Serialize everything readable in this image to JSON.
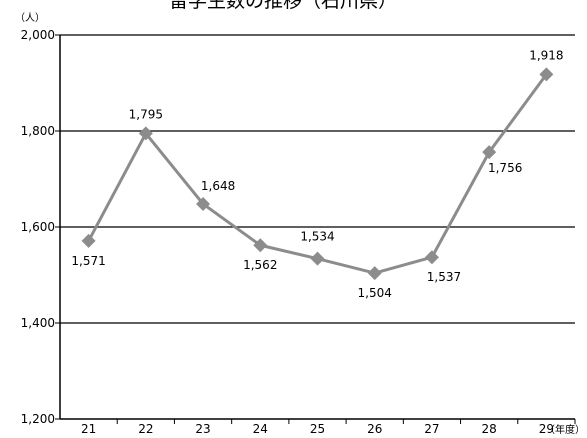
{
  "chart_data": {
    "type": "line",
    "title": "留学生数の推移（石川県）",
    "y_unit": "（人）",
    "x_unit": "（年度）",
    "x": [
      "21",
      "22",
      "23",
      "24",
      "25",
      "26",
      "27",
      "28",
      "29"
    ],
    "series": [
      {
        "values": [
          1571,
          1795,
          1648,
          1562,
          1534,
          1504,
          1537,
          1756,
          1918
        ]
      }
    ],
    "value_labels": [
      "1,571",
      "1,795",
      "1,648",
      "1,562",
      "1,534",
      "1,504",
      "1,537",
      "1,756",
      "1,918"
    ],
    "ylim": [
      1200,
      2000
    ],
    "yticks": [
      1200,
      1400,
      1600,
      1800,
      2000
    ],
    "ytick_labels": [
      "1,200",
      "1,400",
      "1,600",
      "1,800",
      "2,000"
    ],
    "grid": true,
    "colors": {
      "series": "#8c8c8c",
      "gridline": "#000000",
      "axis": "#000000"
    }
  }
}
